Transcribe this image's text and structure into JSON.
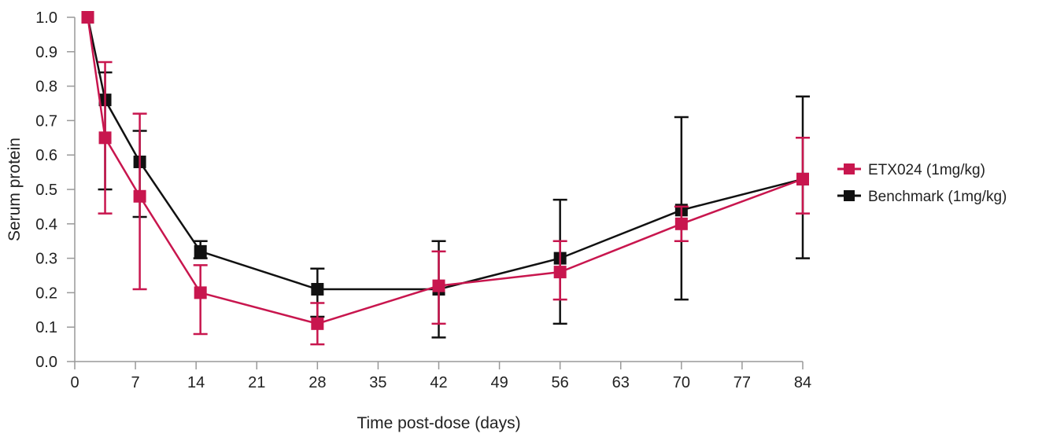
{
  "chart_data": {
    "type": "line",
    "xlabel": "Time post-dose (days)",
    "ylabel": "Serum protein",
    "xlim": [
      0,
      84
    ],
    "ylim": [
      0,
      1.0
    ],
    "xticks": [
      "0",
      "7",
      "14",
      "21",
      "28",
      "35",
      "42",
      "49",
      "56",
      "63",
      "70",
      "77",
      "84"
    ],
    "yticks": [
      "0.0",
      "0.1",
      "0.2",
      "0.3",
      "0.4",
      "0.5",
      "0.6",
      "0.7",
      "0.8",
      "0.9",
      "1.0"
    ],
    "grid": false,
    "legend_position": "right",
    "series": [
      {
        "name": "Benchmark (1mg/kg)",
        "color": "#111111",
        "x": [
          1.5,
          3.5,
          7.5,
          14.5,
          28,
          42,
          56,
          70,
          84
        ],
        "y": [
          1.0,
          0.76,
          0.58,
          0.32,
          0.21,
          0.21,
          0.3,
          0.44,
          0.53
        ],
        "err_low": [
          null,
          0.5,
          0.42,
          0.3,
          0.13,
          0.07,
          0.11,
          0.18,
          0.3
        ],
        "err_high": [
          null,
          0.84,
          0.67,
          0.35,
          0.27,
          0.35,
          0.47,
          0.71,
          0.77
        ]
      },
      {
        "name": "ETX024 (1mg/kg)",
        "color": "#c8164e",
        "x": [
          1.5,
          3.5,
          7.5,
          14.5,
          28,
          42,
          56,
          70,
          84
        ],
        "y": [
          1.0,
          0.65,
          0.48,
          0.2,
          0.11,
          0.22,
          0.26,
          0.4,
          0.53
        ],
        "err_low": [
          null,
          0.43,
          0.21,
          0.08,
          0.05,
          0.11,
          0.18,
          0.35,
          0.43
        ],
        "err_high": [
          null,
          0.87,
          0.72,
          0.28,
          0.17,
          0.32,
          0.35,
          0.45,
          0.65
        ]
      }
    ]
  }
}
